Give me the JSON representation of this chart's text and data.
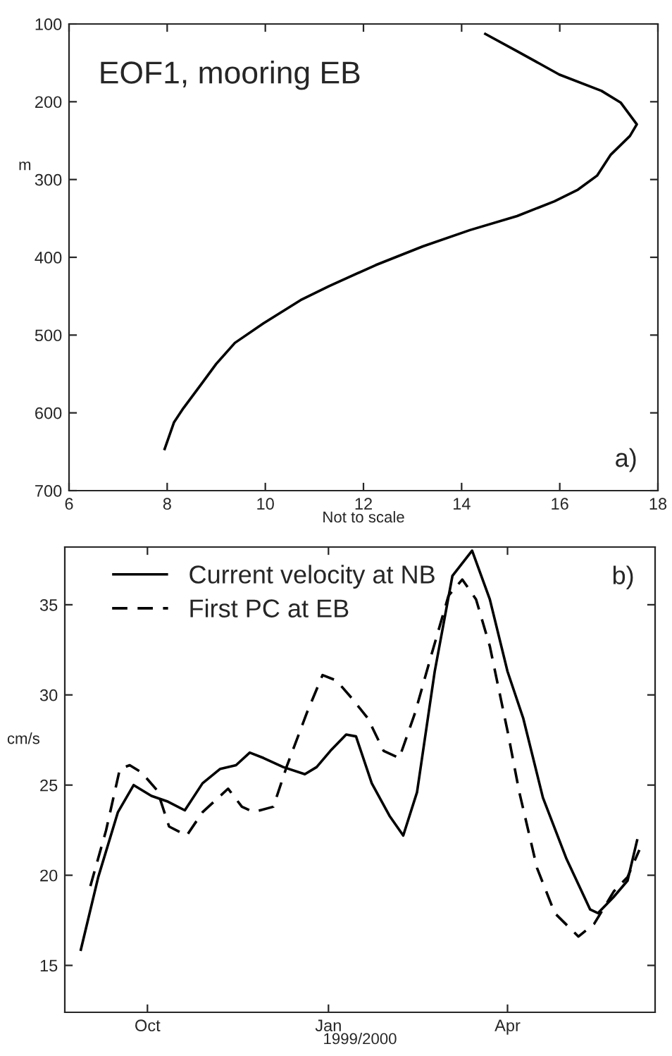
{
  "chart_data": [
    {
      "type": "line",
      "annotations": [
        "EOF1, mooring EB",
        "a)"
      ],
      "xlabel": "Not to scale",
      "ylabel": "m",
      "xlim": [
        6,
        18
      ],
      "xticks": [
        6,
        8,
        10,
        12,
        14,
        16,
        18
      ],
      "ylim": [
        700,
        100
      ],
      "yticks": [
        100,
        200,
        300,
        400,
        500,
        600,
        700
      ],
      "grid": false,
      "legend": false,
      "series": [
        {
          "color": "#000000",
          "line_style": "solid",
          "x": [
            14.46,
            15.13,
            15.99,
            16.85,
            17.24,
            17.57,
            17.43,
            17.04,
            16.76,
            16.37,
            15.89,
            15.13,
            14.17,
            13.21,
            12.25,
            11.3,
            10.72,
            9.96,
            9.38,
            9.0,
            8.72,
            8.33,
            8.14,
            7.94
          ],
          "values": [
            112,
            135,
            165,
            186,
            201,
            229,
            244,
            268,
            295,
            313,
            328,
            347,
            365,
            386,
            410,
            437,
            455,
            485,
            510,
            537,
            561,
            594,
            612,
            648
          ]
        }
      ]
    },
    {
      "type": "line",
      "annotations": [
        "b)"
      ],
      "xlabel": "1999/2000",
      "ylabel": "cm/s",
      "xlim": [
        "1999-08-20",
        "2000-06-15"
      ],
      "xticks": [
        {
          "value": "1999-10-01",
          "label": "Oct"
        },
        {
          "value": "2000-01-01",
          "label": "Jan"
        },
        {
          "value": "2000-04-01",
          "label": "Apr"
        }
      ],
      "ylim": [
        12.4,
        38.2
      ],
      "yticks": [
        15,
        20,
        25,
        30,
        35
      ],
      "grid": false,
      "legend": "top left",
      "series": [
        {
          "name": "Current velocity at NB",
          "color": "#000000",
          "line_style": "solid",
          "x": [
            "1999-08-28",
            "1999-09-06",
            "1999-09-16",
            "1999-09-24",
            "1999-10-03",
            "1999-10-11",
            "1999-10-20",
            "1999-10-29",
            "1999-11-07",
            "1999-11-15",
            "1999-11-22",
            "1999-11-29",
            "1999-12-09",
            "1999-12-20",
            "1999-12-26",
            "2000-01-02",
            "2000-01-10",
            "2000-01-15",
            "2000-01-23",
            "2000-02-01",
            "2000-02-08",
            "2000-02-15",
            "2000-02-24",
            "2000-03-04",
            "2000-03-14",
            "2000-03-23",
            "2000-04-01",
            "2000-04-09",
            "2000-04-19",
            "2000-05-01",
            "2000-05-13",
            "2000-05-17",
            "2000-05-25",
            "2000-06-01",
            "2000-06-06"
          ],
          "values": [
            15.8,
            19.9,
            23.5,
            25.0,
            24.4,
            24.1,
            23.6,
            25.1,
            25.9,
            26.1,
            26.8,
            26.5,
            26.0,
            25.6,
            26.0,
            26.9,
            27.8,
            27.7,
            25.1,
            23.3,
            22.2,
            24.6,
            31.3,
            36.6,
            38.0,
            35.3,
            31.3,
            28.7,
            24.3,
            20.9,
            18.1,
            17.9,
            18.8,
            19.7,
            22.0
          ]
        },
        {
          "name": "First PC at EB",
          "color": "#000000",
          "line_style": "dashed",
          "x": [
            "1999-09-02",
            "1999-09-10",
            "1999-09-17",
            "1999-09-22",
            "1999-09-28",
            "1999-10-06",
            "1999-10-12",
            "1999-10-21",
            "1999-10-29",
            "1999-11-11",
            "1999-11-18",
            "1999-11-24",
            "1999-12-04",
            "1999-12-11",
            "1999-12-21",
            "1999-12-29",
            "2000-01-05",
            "2000-01-13",
            "2000-01-21",
            "2000-01-29",
            "2000-02-06",
            "2000-02-14",
            "2000-02-22",
            "2000-03-02",
            "2000-03-09",
            "2000-03-16",
            "2000-03-23",
            "2000-04-01",
            "2000-04-07",
            "2000-04-16",
            "2000-04-25",
            "2000-05-07",
            "2000-05-15",
            "2000-05-25",
            "2000-06-01",
            "2000-06-07"
          ],
          "values": [
            19.4,
            22.5,
            25.9,
            26.1,
            25.7,
            24.7,
            22.7,
            22.2,
            23.5,
            24.8,
            23.8,
            23.5,
            23.8,
            26.1,
            29.0,
            31.1,
            30.8,
            29.8,
            28.7,
            26.9,
            26.5,
            29.0,
            32.1,
            35.5,
            36.4,
            35.3,
            32.7,
            28.0,
            24.6,
            20.4,
            17.9,
            16.6,
            17.3,
            19.1,
            19.9,
            21.4
          ]
        }
      ]
    }
  ]
}
